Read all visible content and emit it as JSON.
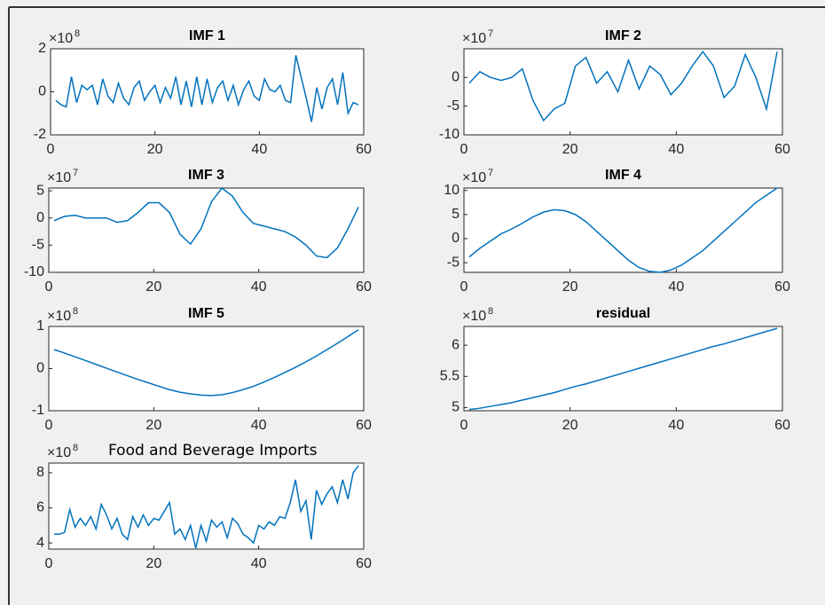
{
  "chart_data": [
    {
      "type": "line",
      "title": "IMF 1",
      "title_bold": true,
      "multiplier": {
        "base": "×10",
        "power": "8"
      },
      "color": "#0072bd",
      "x": [
        1,
        2,
        3,
        4,
        5,
        6,
        7,
        8,
        9,
        10,
        11,
        12,
        13,
        14,
        15,
        16,
        17,
        18,
        19,
        20,
        21,
        22,
        23,
        24,
        25,
        26,
        27,
        28,
        29,
        30,
        31,
        32,
        33,
        34,
        35,
        36,
        37,
        38,
        39,
        40,
        41,
        42,
        43,
        44,
        45,
        46,
        47,
        48,
        49,
        50,
        51,
        52,
        53,
        54,
        55,
        56,
        57,
        58,
        59
      ],
      "values": [
        -0.4,
        -0.6,
        -0.7,
        0.7,
        -0.5,
        0.3,
        0.1,
        0.3,
        -0.6,
        0.6,
        -0.2,
        -0.5,
        0.4,
        -0.3,
        -0.6,
        0.2,
        0.5,
        -0.4,
        0.0,
        0.3,
        -0.5,
        0.2,
        -0.3,
        0.7,
        -0.6,
        0.5,
        -0.7,
        0.7,
        -0.6,
        0.6,
        -0.5,
        0.2,
        0.5,
        -0.4,
        0.3,
        -0.6,
        0.1,
        0.5,
        -0.2,
        -0.4,
        0.6,
        0.1,
        0.0,
        0.3,
        -0.4,
        -0.5,
        1.7,
        0.7,
        -0.3,
        -1.4,
        0.2,
        -0.8,
        0.2,
        0.6,
        -0.6,
        0.9,
        -1.0,
        -0.5,
        -0.6
      ],
      "xlim": [
        0,
        60
      ],
      "xticks": [
        0,
        20,
        40,
        60
      ],
      "ylim": [
        -2,
        2
      ],
      "yticks": [
        -2,
        0,
        2
      ]
    },
    {
      "type": "line",
      "title": "IMF 2",
      "title_bold": true,
      "multiplier": {
        "base": "×10",
        "power": "7"
      },
      "color": "#0072bd",
      "x": [
        1,
        3,
        5,
        7,
        9,
        11,
        13,
        15,
        17,
        19,
        21,
        23,
        25,
        27,
        29,
        31,
        33,
        35,
        37,
        39,
        41,
        43,
        45,
        47,
        49,
        51,
        53,
        55,
        57,
        59
      ],
      "values": [
        -1,
        1,
        0,
        -0.5,
        0,
        1.5,
        -4,
        -7.5,
        -5.5,
        -4.5,
        2,
        3.5,
        -1,
        1,
        -2.5,
        3,
        -2,
        2,
        0.5,
        -3,
        -1,
        2,
        4.5,
        2,
        -3.5,
        -1.5,
        4,
        0,
        -5.5,
        4.5
      ],
      "xlim": [
        0,
        60
      ],
      "xticks": [
        0,
        20,
        40,
        60
      ],
      "ylim": [
        -10,
        5
      ],
      "yticks": [
        -10,
        -5,
        0
      ]
    },
    {
      "type": "line",
      "title": "IMF 3",
      "title_bold": true,
      "multiplier": {
        "base": "×10",
        "power": "7"
      },
      "color": "#0072bd",
      "x": [
        1,
        3,
        5,
        7,
        9,
        11,
        13,
        15,
        17,
        19,
        21,
        23,
        25,
        27,
        29,
        31,
        33,
        35,
        37,
        39,
        41,
        43,
        45,
        47,
        49,
        51,
        53,
        55,
        57,
        59
      ],
      "values": [
        -0.5,
        0.3,
        0.5,
        0,
        0,
        0,
        -0.8,
        -0.5,
        1,
        2.8,
        2.8,
        1,
        -3,
        -4.8,
        -2,
        3,
        5.5,
        4,
        1,
        -1,
        -1.5,
        -2,
        -2.5,
        -3.5,
        -5,
        -7,
        -7.3,
        -5.5,
        -2,
        2
      ],
      "xlim": [
        0,
        60
      ],
      "xticks": [
        0,
        20,
        40,
        60
      ],
      "ylim": [
        -10,
        5.5
      ],
      "yticks": [
        -10,
        -5,
        0,
        5
      ]
    },
    {
      "type": "line",
      "title": "IMF 4",
      "title_bold": true,
      "multiplier": {
        "base": "×10",
        "power": "7"
      },
      "color": "#0072bd",
      "x": [
        1,
        3,
        5,
        7,
        9,
        11,
        13,
        15,
        17,
        19,
        21,
        23,
        25,
        27,
        29,
        31,
        33,
        35,
        37,
        39,
        41,
        43,
        45,
        47,
        49,
        51,
        53,
        55,
        57,
        59
      ],
      "values": [
        -3.8,
        -2,
        -0.5,
        1,
        2,
        3.2,
        4.5,
        5.5,
        6,
        5.8,
        5,
        3.5,
        1.5,
        -0.5,
        -2.5,
        -4.5,
        -6,
        -6.8,
        -7,
        -6.5,
        -5.5,
        -4,
        -2.5,
        -0.5,
        1.5,
        3.5,
        5.5,
        7.5,
        9,
        10.5
      ],
      "xlim": [
        0,
        60
      ],
      "xticks": [
        0,
        20,
        40,
        60
      ],
      "ylim": [
        -7,
        10.5
      ],
      "yticks": [
        -5,
        0,
        5,
        10
      ]
    },
    {
      "type": "line",
      "title": "IMF 5",
      "title_bold": true,
      "multiplier": {
        "base": "×10",
        "power": "8"
      },
      "color": "#0072bd",
      "x": [
        1,
        3,
        5,
        7,
        9,
        11,
        13,
        15,
        17,
        19,
        21,
        23,
        25,
        27,
        29,
        31,
        33,
        35,
        37,
        39,
        41,
        43,
        45,
        47,
        49,
        51,
        53,
        55,
        57,
        59
      ],
      "values": [
        0.45,
        0.37,
        0.28,
        0.19,
        0.1,
        0.01,
        -0.08,
        -0.17,
        -0.26,
        -0.34,
        -0.42,
        -0.5,
        -0.56,
        -0.6,
        -0.63,
        -0.64,
        -0.62,
        -0.57,
        -0.5,
        -0.42,
        -0.32,
        -0.21,
        -0.09,
        0.03,
        0.16,
        0.3,
        0.45,
        0.6,
        0.76,
        0.92
      ],
      "xlim": [
        0,
        60
      ],
      "xticks": [
        0,
        20,
        40,
        60
      ],
      "ylim": [
        -1,
        1
      ],
      "yticks": [
        -1,
        0,
        1
      ]
    },
    {
      "type": "line",
      "title": "residual",
      "title_bold": true,
      "multiplier": {
        "base": "×10",
        "power": "8"
      },
      "color": "#0072bd",
      "x": [
        1,
        3,
        5,
        7,
        9,
        11,
        13,
        15,
        17,
        19,
        21,
        23,
        25,
        27,
        29,
        31,
        33,
        35,
        37,
        39,
        41,
        43,
        45,
        47,
        49,
        51,
        53,
        55,
        57,
        59
      ],
      "values": [
        4.97,
        4.99,
        5.02,
        5.05,
        5.08,
        5.12,
        5.16,
        5.2,
        5.24,
        5.29,
        5.34,
        5.38,
        5.43,
        5.48,
        5.53,
        5.58,
        5.63,
        5.68,
        5.73,
        5.78,
        5.83,
        5.88,
        5.93,
        5.98,
        6.02,
        6.07,
        6.12,
        6.17,
        6.22,
        6.27
      ],
      "xlim": [
        0,
        60
      ],
      "xticks": [
        0,
        20,
        40,
        60
      ],
      "ylim": [
        4.95,
        6.3
      ],
      "yticks": [
        5,
        5.5,
        6
      ]
    },
    {
      "type": "line",
      "title": "Food and Beverage Imports",
      "title_bold": false,
      "multiplier": {
        "base": "×10",
        "power": "8"
      },
      "color": "#0072bd",
      "x": [
        1,
        2,
        3,
        4,
        5,
        6,
        7,
        8,
        9,
        10,
        11,
        12,
        13,
        14,
        15,
        16,
        17,
        18,
        19,
        20,
        21,
        22,
        23,
        24,
        25,
        26,
        27,
        28,
        29,
        30,
        31,
        32,
        33,
        34,
        35,
        36,
        37,
        38,
        39,
        40,
        41,
        42,
        43,
        44,
        45,
        46,
        47,
        48,
        49,
        50,
        51,
        52,
        53,
        54,
        55,
        56,
        57,
        58,
        59
      ],
      "values": [
        4.5,
        4.5,
        4.6,
        5.9,
        4.9,
        5.4,
        5.0,
        5.5,
        4.8,
        6.2,
        5.6,
        4.8,
        5.4,
        4.5,
        4.2,
        5.5,
        4.9,
        5.6,
        5.0,
        5.4,
        5.3,
        5.8,
        6.3,
        4.5,
        4.8,
        4.2,
        5.0,
        3.7,
        5.0,
        4.1,
        5.3,
        4.9,
        5.2,
        4.3,
        5.4,
        5.1,
        4.5,
        4.3,
        4.0,
        5.0,
        4.8,
        5.2,
        5.0,
        5.5,
        5.4,
        6.3,
        7.6,
        5.8,
        6.4,
        4.2,
        7.0,
        6.2,
        6.8,
        7.2,
        6.3,
        7.6,
        6.5,
        8.0,
        8.4
      ],
      "xlim": [
        0,
        60
      ],
      "xticks": [
        0,
        20,
        40,
        60
      ],
      "ylim": [
        3.65,
        8.55
      ],
      "yticks": [
        4,
        6,
        8
      ]
    }
  ]
}
